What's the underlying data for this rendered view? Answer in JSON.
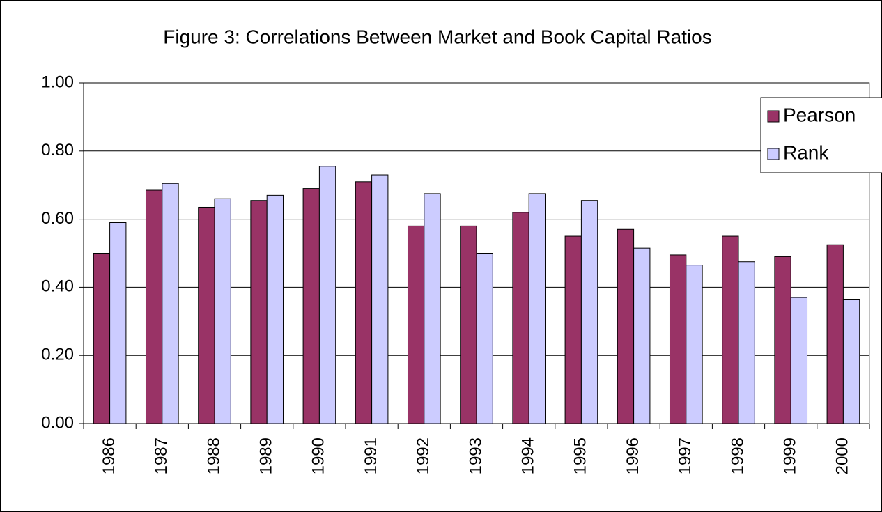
{
  "chart_data": {
    "type": "bar",
    "title": "Figure 3: Correlations Between Market and Book Capital Ratios",
    "categories": [
      "1986",
      "1987",
      "1988",
      "1989",
      "1990",
      "1991",
      "1992",
      "1993",
      "1994",
      "1995",
      "1996",
      "1997",
      "1998",
      "1999",
      "2000"
    ],
    "series": [
      {
        "name": "Pearson",
        "color": "#993366",
        "values": [
          0.5,
          0.685,
          0.635,
          0.655,
          0.69,
          0.71,
          0.58,
          0.58,
          0.62,
          0.55,
          0.57,
          0.495,
          0.55,
          0.49,
          0.525
        ]
      },
      {
        "name": "Rank",
        "color": "#ccccff",
        "values": [
          0.59,
          0.705,
          0.66,
          0.67,
          0.755,
          0.73,
          0.675,
          0.5,
          0.675,
          0.655,
          0.515,
          0.465,
          0.475,
          0.37,
          0.365
        ]
      }
    ],
    "ylim": [
      0,
      1
    ],
    "yticks": [
      {
        "value": 0,
        "label": "0.00"
      },
      {
        "value": 0.2,
        "label": "0.20"
      },
      {
        "value": 0.4,
        "label": "0.40"
      },
      {
        "value": 0.6,
        "label": "0.60"
      },
      {
        "value": 0.8,
        "label": "0.80"
      },
      {
        "value": 1,
        "label": "1.00"
      }
    ],
    "grid": true,
    "legend": "right"
  }
}
